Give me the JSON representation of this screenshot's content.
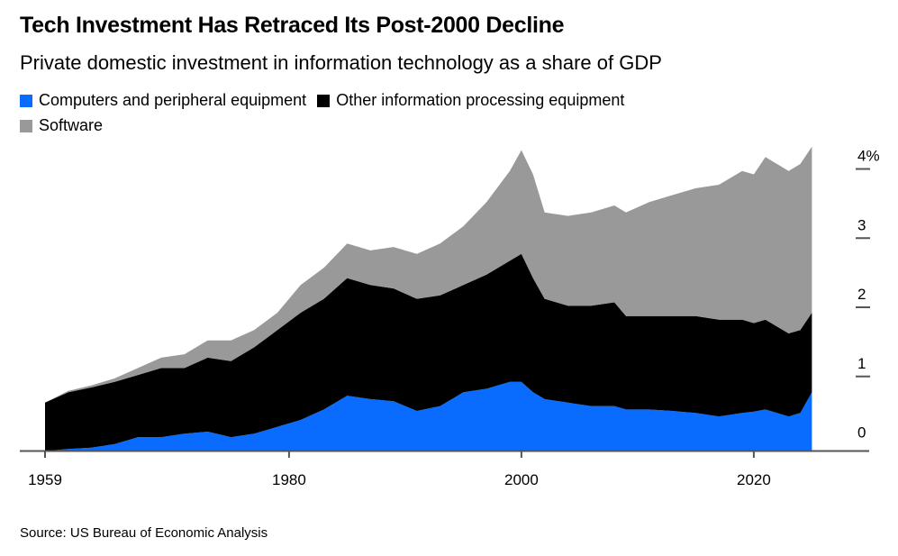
{
  "chart_data": {
    "type": "area",
    "stacked": true,
    "title": "Tech Investment Has Retraced Its Post-2000 Decline",
    "subtitle": "Private domestic investment in information technology as a share of GDP",
    "source": "Source: US Bureau of Economic Analysis",
    "x": [
      1959,
      1961,
      1963,
      1965,
      1967,
      1969,
      1971,
      1973,
      1975,
      1977,
      1979,
      1981,
      1983,
      1985,
      1987,
      1989,
      1991,
      1993,
      1995,
      1997,
      1999,
      2000,
      2001,
      2002,
      2004,
      2006,
      2008,
      2009,
      2011,
      2013,
      2015,
      2017,
      2019,
      2020,
      2021,
      2023,
      2024,
      2025
    ],
    "series": [
      {
        "name": "Computers and peripheral equipment",
        "color": "#0a6cff",
        "values": [
          0.0,
          0.03,
          0.05,
          0.1,
          0.2,
          0.2,
          0.25,
          0.28,
          0.2,
          0.25,
          0.35,
          0.45,
          0.6,
          0.8,
          0.75,
          0.72,
          0.58,
          0.65,
          0.85,
          0.9,
          1.0,
          1.0,
          0.85,
          0.75,
          0.7,
          0.65,
          0.65,
          0.6,
          0.6,
          0.58,
          0.55,
          0.5,
          0.55,
          0.57,
          0.6,
          0.5,
          0.55,
          0.85
        ]
      },
      {
        "name": "Other information processing equipment",
        "color": "#000000",
        "values": [
          0.7,
          0.82,
          0.87,
          0.9,
          0.9,
          1.0,
          0.95,
          1.07,
          1.1,
          1.25,
          1.4,
          1.55,
          1.6,
          1.7,
          1.65,
          1.63,
          1.62,
          1.6,
          1.55,
          1.65,
          1.75,
          1.85,
          1.65,
          1.45,
          1.4,
          1.45,
          1.5,
          1.35,
          1.35,
          1.37,
          1.4,
          1.4,
          1.35,
          1.28,
          1.3,
          1.2,
          1.2,
          1.15
        ]
      },
      {
        "name": "Software",
        "color": "#999999",
        "values": [
          0.0,
          0.02,
          0.03,
          0.05,
          0.1,
          0.15,
          0.2,
          0.25,
          0.3,
          0.25,
          0.25,
          0.4,
          0.45,
          0.5,
          0.5,
          0.6,
          0.65,
          0.75,
          0.85,
          1.05,
          1.3,
          1.5,
          1.5,
          1.25,
          1.3,
          1.35,
          1.4,
          1.5,
          1.65,
          1.75,
          1.85,
          1.95,
          2.15,
          2.15,
          2.35,
          2.35,
          2.4,
          2.4
        ]
      }
    ],
    "xticks": [
      "1959",
      "1980",
      "2000",
      "2020"
    ],
    "xtick_values": [
      1959,
      1980,
      2000,
      2020
    ],
    "yticks": [
      "0",
      "1",
      "2",
      "3",
      "4%"
    ],
    "ytick_values": [
      0,
      1,
      2,
      3,
      4
    ],
    "ylim": [
      0,
      4.4
    ],
    "xlim": [
      1959,
      2025.7
    ],
    "ylabel": "",
    "xlabel": "",
    "y_axis_position": "right",
    "legend_position": "top-left",
    "grid": false
  }
}
